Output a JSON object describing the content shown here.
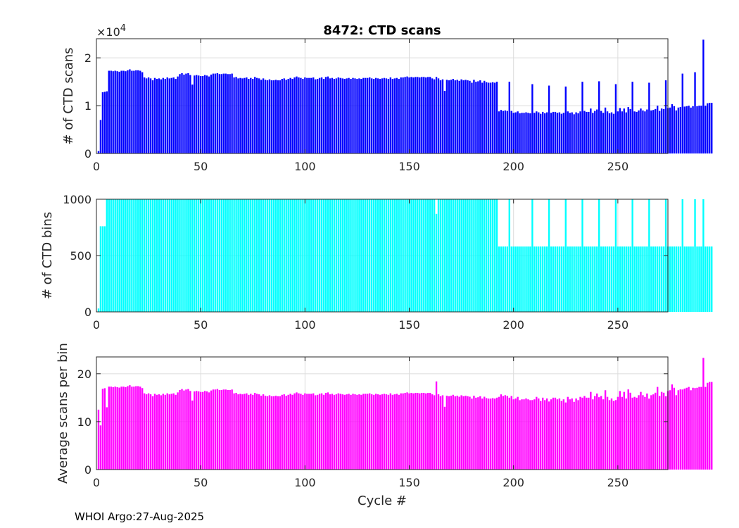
{
  "footer": "WHOI Argo:27-Aug-2025",
  "chart_data": [
    {
      "type": "bar",
      "title": "8472: CTD scans",
      "ylabel": "# of CTD scans",
      "xlabel": "",
      "color": "#0000ff",
      "xlim": [
        0,
        274
      ],
      "ylim": [
        0,
        24000
      ],
      "xticks": [
        0,
        50,
        100,
        150,
        200,
        250
      ],
      "yticks": [
        0,
        10000,
        20000
      ],
      "ytick_labels": [
        "0",
        "1",
        "2"
      ],
      "exponent_base": "×10",
      "exponent_power": "4",
      "grid": true,
      "x_start": 1,
      "values": [
        500,
        7000,
        12800,
        12900,
        13000,
        17300,
        17300,
        17200,
        17300,
        17200,
        17100,
        17300,
        17300,
        17200,
        17400,
        17600,
        17300,
        17300,
        17400,
        17400,
        17300,
        17000,
        15900,
        15700,
        15900,
        15700,
        15300,
        15800,
        15600,
        15700,
        15500,
        15800,
        15600,
        15900,
        15700,
        15800,
        15900,
        15600,
        16100,
        16600,
        16800,
        16500,
        16700,
        16800,
        16400,
        14400,
        16300,
        16400,
        16300,
        16200,
        16200,
        16400,
        16300,
        16100,
        16500,
        16700,
        16700,
        16800,
        16600,
        16600,
        16700,
        16700,
        16600,
        16600,
        16700,
        15900,
        16000,
        15700,
        15800,
        15700,
        15800,
        15900,
        15600,
        15800,
        15600,
        16000,
        15800,
        15700,
        15400,
        15700,
        15400,
        15300,
        15500,
        15300,
        15300,
        15400,
        15300,
        15300,
        15600,
        15700,
        15400,
        15600,
        15800,
        15600,
        15900,
        16100,
        15900,
        15800,
        15600,
        15900,
        15800,
        15800,
        15800,
        15900,
        15500,
        15600,
        15800,
        15900,
        15600,
        16000,
        16100,
        15700,
        15800,
        15600,
        15700,
        15900,
        15800,
        15700,
        15600,
        15700,
        15800,
        15600,
        15800,
        15700,
        15600,
        15700,
        15600,
        15800,
        15800,
        15800,
        15900,
        15700,
        15600,
        15800,
        15700,
        15600,
        15700,
        15800,
        15700,
        15600,
        15900,
        15600,
        15700,
        15800,
        15600,
        15900,
        15900,
        16000,
        16100,
        15900,
        16000,
        15900,
        16000,
        16000,
        15900,
        16000,
        16000,
        15900,
        16000,
        16000,
        15700,
        15500,
        16000,
        15700,
        15300,
        15500,
        13100,
        15400,
        15300,
        15400,
        15600,
        15300,
        15400,
        15200,
        15500,
        15300,
        15400,
        15300,
        15200,
        14800,
        15400,
        15000,
        15100,
        15300,
        14800,
        15200,
        14900,
        14800,
        14800,
        14900,
        14800,
        15000,
        8800,
        9100,
        8900,
        9000,
        8900,
        15000,
        8900,
        8500,
        8600,
        8800,
        8400,
        8500,
        8500,
        8600,
        8500,
        8400,
        14500,
        8500,
        8800,
        8600,
        8300,
        8700,
        8400,
        8600,
        14200,
        8500,
        8700,
        8700,
        8500,
        8600,
        8300,
        8500,
        14000,
        8800,
        8500,
        8600,
        8200,
        8600,
        8400,
        8800,
        15000,
        8900,
        8700,
        8700,
        9400,
        8500,
        8900,
        9200,
        15100,
        8900,
        8500,
        9600,
        8800,
        8400,
        8600,
        8300,
        14500,
        8800,
        9500,
        8800,
        9400,
        8600,
        9700,
        9300,
        15000,
        8800,
        8700,
        9000,
        9400,
        9000,
        8800,
        9200,
        14800,
        9000,
        9100,
        9300,
        10000,
        8900,
        9400,
        9300,
        15300,
        9500,
        9600,
        10300,
        9900,
        9000,
        9600,
        9700,
        16700,
        9800,
        9900,
        10000,
        9600,
        9900,
        17000,
        9900,
        10000,
        10000,
        23800,
        10000,
        10500,
        10600,
        10600
      ],
      "values_comment_ignored": ""
    },
    {
      "type": "bar",
      "title": "",
      "ylabel": "# of CTD bins",
      "xlabel": "",
      "color": "#00ffff",
      "xlim": [
        0,
        274
      ],
      "ylim": [
        0,
        1000
      ],
      "xticks": [
        0,
        50,
        100,
        150,
        200,
        250
      ],
      "yticks": [
        0,
        500,
        1000
      ],
      "ytick_labels": [
        "0",
        "500",
        "1000"
      ],
      "grid": true,
      "x_start": 1
    },
    {
      "type": "bar",
      "title": "",
      "ylabel": "Average scans per bin",
      "xlabel": "Cycle #",
      "color": "#ff00ff",
      "xlim": [
        0,
        274
      ],
      "ylim": [
        0,
        23.5
      ],
      "xticks": [
        0,
        50,
        100,
        150,
        200,
        250
      ],
      "yticks": [
        0,
        10,
        20
      ],
      "ytick_labels": [
        "0",
        "10",
        "20"
      ],
      "grid": true,
      "x_start": 1
    }
  ]
}
